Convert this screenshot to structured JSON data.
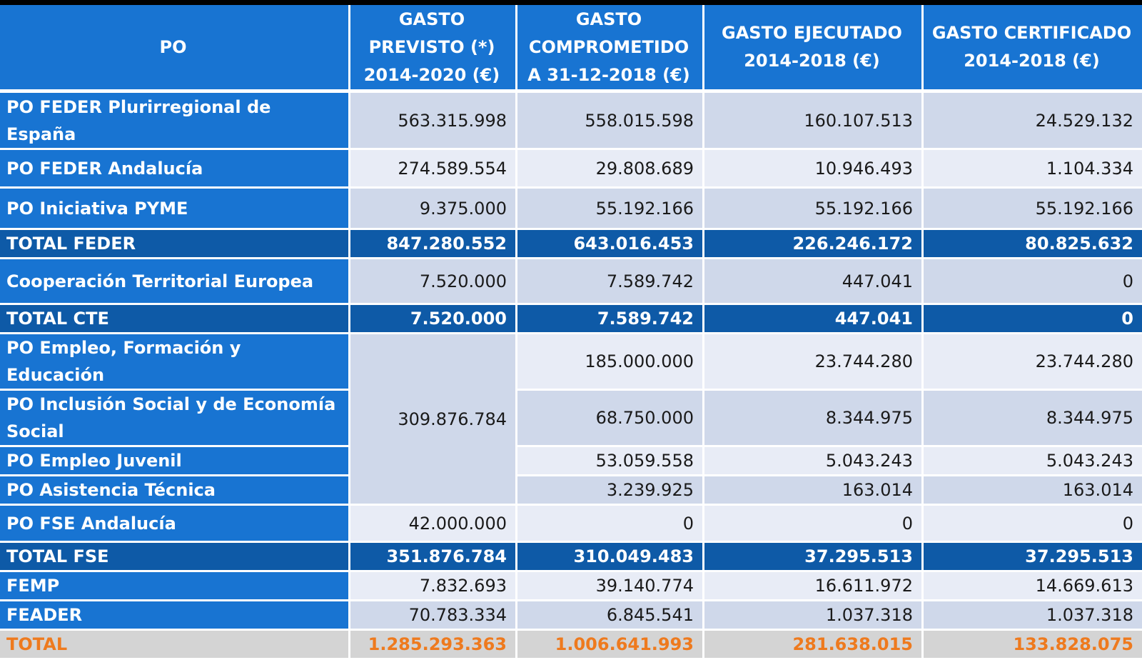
{
  "table": {
    "headers": [
      "PO",
      "GASTO PREVISTO (*) 2014-2020 (€)",
      "GASTO COMPROMETIDO A 31-12-2018 (€)",
      "GASTO EJECUTADO 2014-2018 (€)",
      "GASTO CERTIFICADO 2014-2018 (€)"
    ],
    "rows": [
      [
        "PO FEDER Plurirregional de España",
        "563.315.998",
        "558.015.598",
        "160.107.513",
        "24.529.132"
      ],
      [
        "PO FEDER Andalucía",
        "274.589.554",
        "29.808.689",
        "10.946.493",
        "1.104.334"
      ],
      [
        "PO Iniciativa PYME",
        "9.375.000",
        "55.192.166",
        "55.192.166",
        "55.192.166"
      ],
      [
        "TOTAL FEDER",
        "847.280.552",
        "643.016.453",
        "226.246.172",
        "80.825.632"
      ],
      [
        "Cooperación Territorial Europea",
        "7.520.000",
        "7.589.742",
        "447.041",
        "0"
      ],
      [
        "TOTAL CTE",
        "7.520.000",
        "7.589.742",
        "447.041",
        "0"
      ],
      [
        "PO Empleo, Formación y Educación",
        "309.876.784",
        "185.000.000",
        "23.744.280",
        "23.744.280"
      ],
      [
        "PO Inclusión Social y de Economía Social",
        "",
        "68.750.000",
        "8.344.975",
        "8.344.975"
      ],
      [
        "PO Empleo Juvenil",
        "",
        "53.059.558",
        "5.043.243",
        "5.043.243"
      ],
      [
        "PO Asistencia Técnica",
        "",
        "3.239.925",
        "163.014",
        "163.014"
      ],
      [
        "PO FSE Andalucía",
        "42.000.000",
        "0",
        "0",
        "0"
      ],
      [
        "TOTAL FSE",
        "351.876.784",
        "310.049.483",
        "37.295.513",
        "37.295.513"
      ],
      [
        "FEMP",
        "7.832.693",
        "39.140.774",
        "16.611.972",
        "14.669.613"
      ],
      [
        "FEADER",
        "70.783.334",
        "6.845.541",
        "1.037.318",
        "1.037.318"
      ],
      [
        "TOTAL",
        "1.285.293.363",
        "1.006.641.993",
        "281.638.015",
        "133.828.075"
      ]
    ]
  },
  "colors": {
    "header_blue": "#1874d2",
    "subtotal_blue": "#0e5aa7",
    "shade_cell": "#cfd8ea",
    "light_cell": "#e8ecf6",
    "total_text_orange": "#ee7a1e",
    "total_bg_gray": "#d4d4d4"
  }
}
